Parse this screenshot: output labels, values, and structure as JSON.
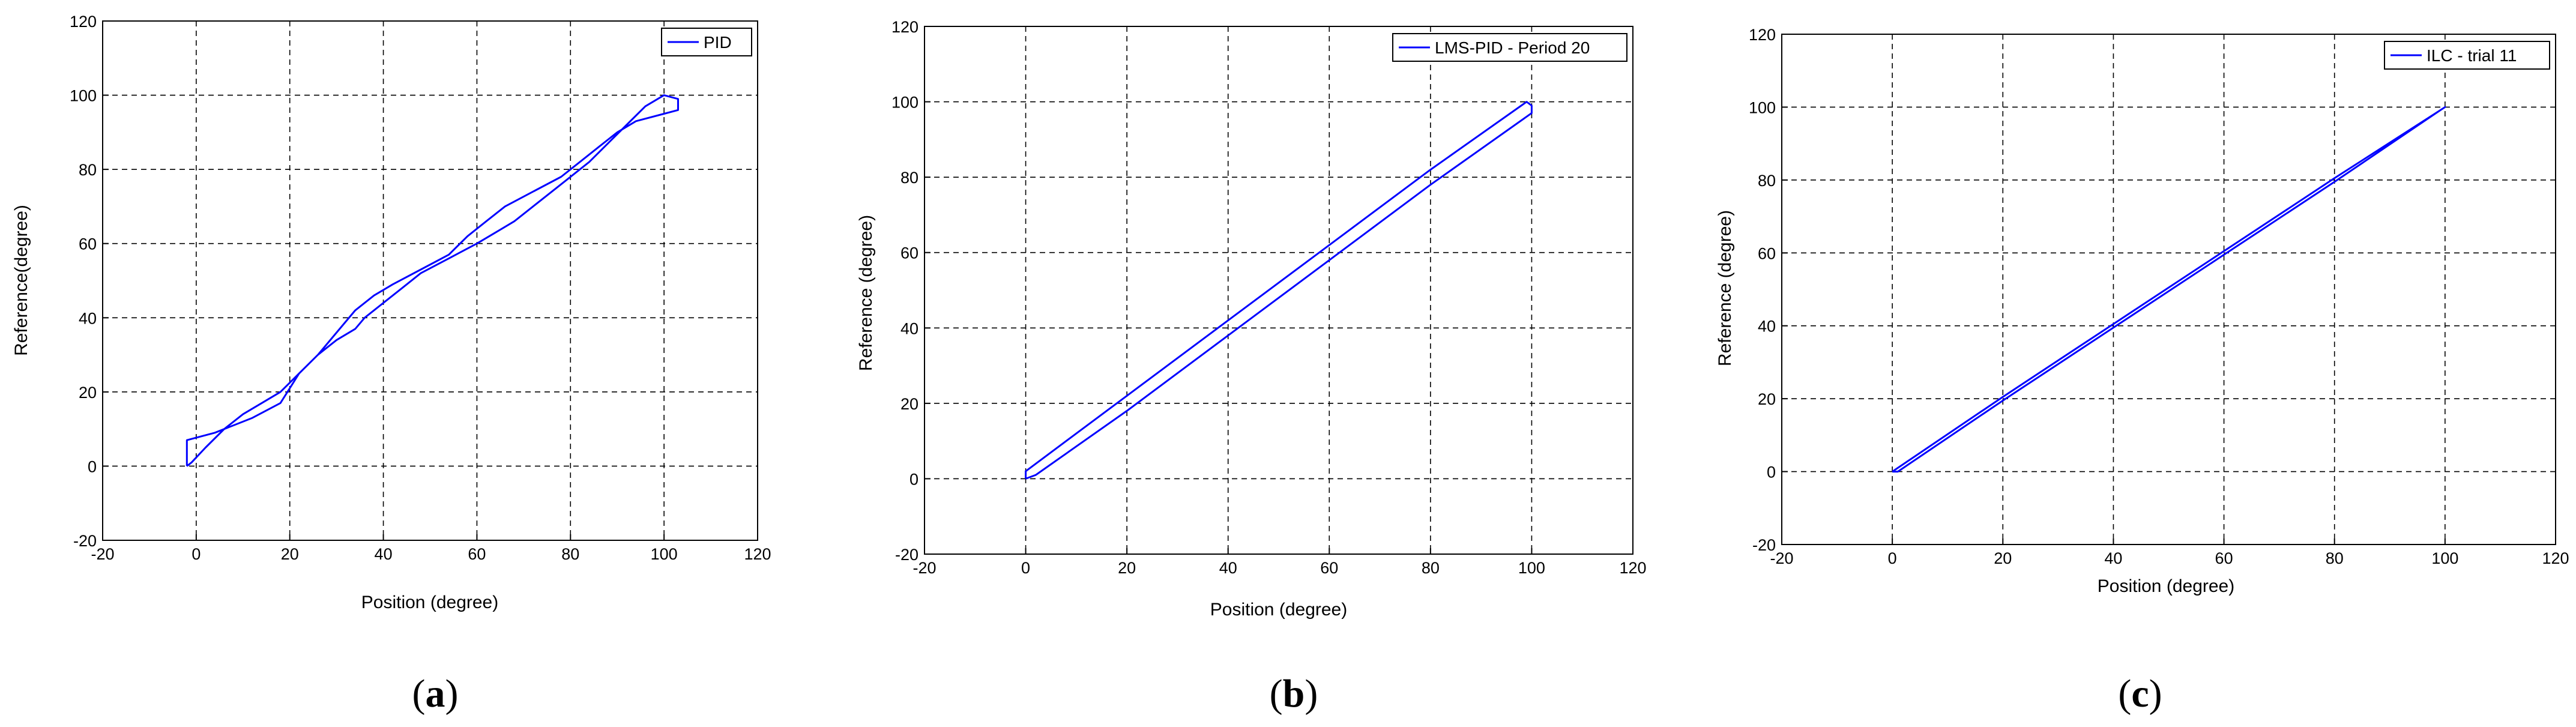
{
  "chart_data": [
    {
      "type": "line",
      "panel": "a",
      "caption": [
        "(",
        "a",
        ")"
      ],
      "xlabel": "Position (degree)",
      "ylabel": "Reference(degree)",
      "xlim": [
        -20,
        120
      ],
      "ylim": [
        -20,
        120
      ],
      "xticks": [
        "-20",
        "0",
        "20",
        "40",
        "60",
        "80",
        "100",
        "120"
      ],
      "yticks": [
        "-20",
        "0",
        "20",
        "40",
        "60",
        "80",
        "100",
        "120"
      ],
      "grid": true,
      "legend_position": "top-right",
      "series": [
        {
          "name": "PID",
          "color": "#0000ff",
          "x": [
            -2,
            -2,
            4,
            12,
            18,
            22,
            26,
            30,
            34,
            36,
            38,
            40,
            44,
            48,
            54,
            60,
            64,
            68,
            72,
            78,
            84,
            88,
            92,
            96,
            100,
            103,
            103,
            100,
            94,
            90,
            86,
            82,
            78,
            72,
            66,
            62,
            58,
            54,
            48,
            42,
            38,
            34,
            30,
            26,
            22,
            18,
            14,
            10,
            6,
            2,
            -1,
            -2
          ],
          "y": [
            0,
            7,
            9,
            13,
            17,
            25,
            30,
            34,
            37,
            40,
            42,
            44,
            48,
            52,
            56,
            60,
            63,
            66,
            70,
            76,
            82,
            87,
            92,
            97,
            100,
            99,
            96,
            95,
            93,
            90,
            86,
            82,
            78,
            74,
            70,
            66,
            62,
            57,
            53,
            49,
            46,
            42,
            36,
            30,
            25,
            20,
            17,
            14,
            10,
            5,
            1,
            0
          ]
        }
      ]
    },
    {
      "type": "line",
      "panel": "b",
      "caption": [
        "(",
        "b",
        ")"
      ],
      "xlabel": "Position (degree)",
      "ylabel": "Reference (degree)",
      "xlim": [
        -20,
        120
      ],
      "ylim": [
        -20,
        120
      ],
      "xticks": [
        "-20",
        "0",
        "20",
        "40",
        "60",
        "80",
        "100",
        "120"
      ],
      "yticks": [
        "-20",
        "0",
        "20",
        "40",
        "60",
        "80",
        "100",
        "120"
      ],
      "grid": true,
      "legend_position": "top-right",
      "series": [
        {
          "name": "LMS-PID - Period 20",
          "color": "#0000ff",
          "x": [
            0,
            0,
            20,
            40,
            60,
            80,
            99,
            100,
            100,
            80,
            60,
            40,
            20,
            2,
            0
          ],
          "y": [
            0,
            2,
            22,
            42,
            62,
            82,
            100,
            99,
            97,
            78,
            58,
            38,
            18,
            1,
            0
          ]
        }
      ]
    },
    {
      "type": "line",
      "panel": "c",
      "caption": [
        "(",
        "c",
        ")"
      ],
      "xlabel": "Position (degree)",
      "ylabel": "Reference (degree)",
      "xlim": [
        -20,
        120
      ],
      "ylim": [
        -20,
        120
      ],
      "xticks": [
        "-20",
        "0",
        "20",
        "40",
        "60",
        "80",
        "100",
        "120"
      ],
      "yticks": [
        "-20",
        "0",
        "20",
        "40",
        "60",
        "80",
        "100",
        "120"
      ],
      "grid": true,
      "legend_position": "top-right",
      "series": [
        {
          "name": "ILC - trial 11",
          "color": "#0000ff",
          "x": [
            0,
            20,
            40,
            60,
            80,
            100,
            99,
            80,
            60,
            40,
            20,
            1,
            0
          ],
          "y": [
            0,
            20.5,
            40.5,
            60.5,
            80.5,
            100,
            99,
            79.5,
            59.5,
            39.5,
            19.5,
            0,
            0
          ]
        }
      ]
    }
  ]
}
